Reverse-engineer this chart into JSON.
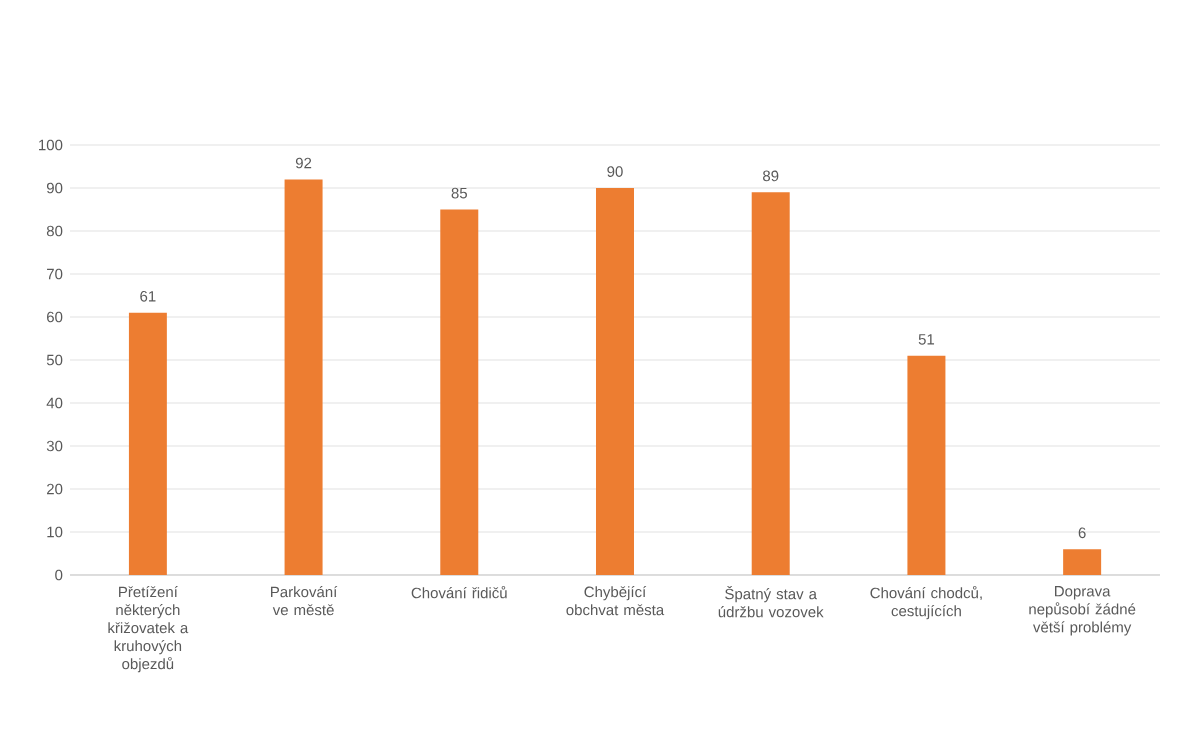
{
  "chart_data": {
    "type": "bar",
    "categories": [
      "Přetížení některých křižovatek a kruhových objezdů",
      "Parkování ve městě",
      "Chování řidičů",
      "Chybějící obchvat města",
      "Špatný stav a údržbu vozovek",
      "Chování chodců, cestujících",
      "Doprava nepůsobí žádné větší problémy"
    ],
    "values": [
      61,
      92,
      85,
      90,
      89,
      51,
      6
    ],
    "color": "#ed7d31",
    "ylim": [
      0,
      100
    ],
    "yticks": [
      0,
      10,
      20,
      30,
      40,
      50,
      60,
      70,
      80,
      90,
      100
    ],
    "grid": "y",
    "data_labels": true
  }
}
